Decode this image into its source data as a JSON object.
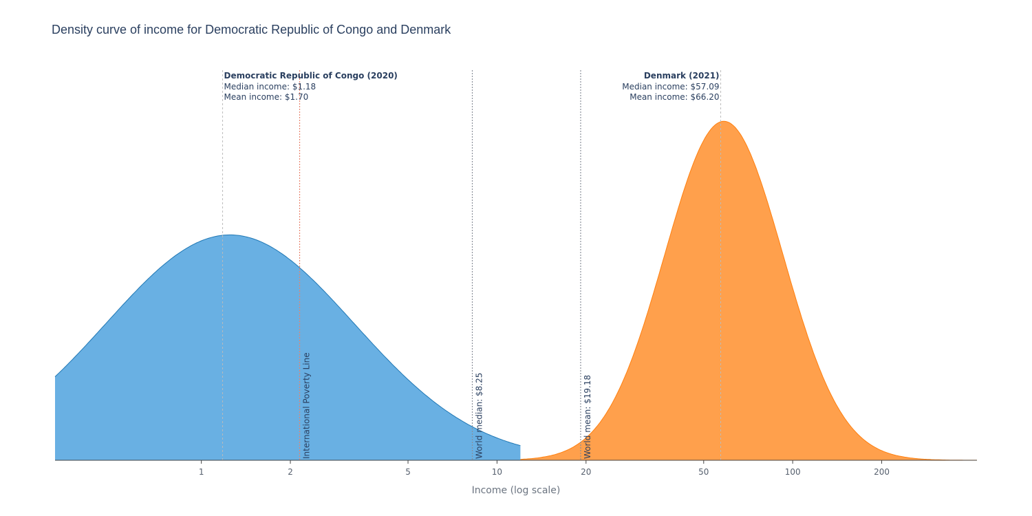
{
  "chart_data": {
    "type": "area",
    "title": "Density curve of income for Democratic Republic of Congo and Denmark",
    "xlabel": "Income (log scale)",
    "ylabel": "",
    "x_scale": "log",
    "x_range": [
      0.32,
      420
    ],
    "x_ticks": [
      {
        "value": 1,
        "label": "1"
      },
      {
        "value": 2,
        "label": "2"
      },
      {
        "value": 5,
        "label": "5"
      },
      {
        "value": 10,
        "label": "10"
      },
      {
        "value": 20,
        "label": "20"
      },
      {
        "value": 50,
        "label": "50"
      },
      {
        "value": 100,
        "label": "100"
      },
      {
        "value": 200,
        "label": "200"
      }
    ],
    "grid": false,
    "legend": "none",
    "series": [
      {
        "country": "Democratic Republic of Congo",
        "color": "#1f77b4",
        "fill": "#69b0e3",
        "mode": 1.25,
        "peak": 0.585,
        "sigma": 0.42,
        "x_start": 0.32,
        "x_end": 12
      },
      {
        "country": "Denmark",
        "color": "#ff7f0e",
        "fill": "#ffa04c",
        "mode": 58.5,
        "peak": 0.88,
        "sigma": 0.2,
        "x_start": 12,
        "x_end": 420
      }
    ],
    "country_annotations": [
      {
        "title": "Democratic Republic of Congo (2020)",
        "median_text": "Median income: $1.18",
        "mean_text": "Mean income: $1.70",
        "median": 1.18,
        "mean": 1.7,
        "align": "left",
        "line_color": "#bbbbbb"
      },
      {
        "title": "Denmark (2021)",
        "median_text": "Median income: $57.09",
        "mean_text": "Mean income: $66.20",
        "median": 57.09,
        "mean": 66.2,
        "align": "right",
        "line_color": "#bbbbbb"
      }
    ],
    "reference_lines": [
      {
        "value": 2.15,
        "label": "International Poverty Line",
        "color": "#e8836d"
      },
      {
        "value": 8.25,
        "label": "World median: $8.25",
        "color": "#8a8f99"
      },
      {
        "value": 19.18,
        "label": "World mean: $19.18",
        "color": "#8a8f99"
      }
    ]
  }
}
